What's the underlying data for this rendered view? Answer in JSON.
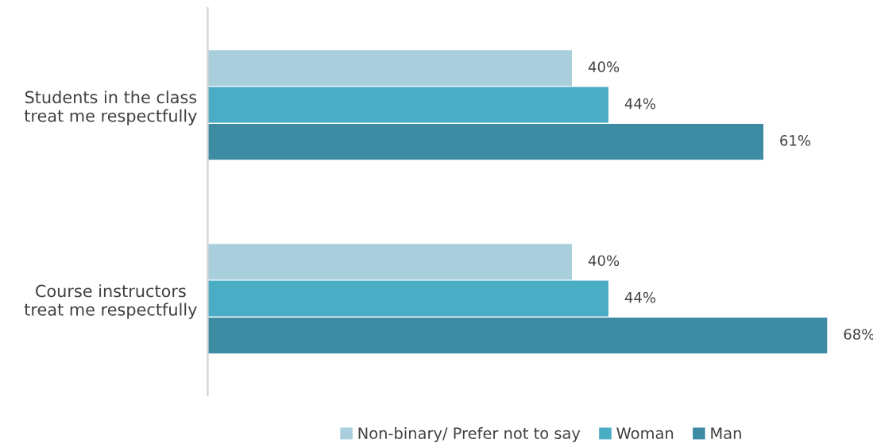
{
  "chart_data": {
    "type": "bar",
    "orientation": "horizontal",
    "categories": [
      "Students in the class\ntreat me respectfully",
      "Course instructors\ntreat me respectfully"
    ],
    "series": [
      {
        "name": "Non-binary/ Prefer not to say",
        "color": "#a9cfdc",
        "values": [
          40,
          40
        ],
        "value_labels": [
          "40%",
          "40%"
        ]
      },
      {
        "name": "Woman",
        "color": "#4aacc5",
        "values": [
          44,
          44
        ],
        "value_labels": [
          "44%",
          "44%"
        ]
      },
      {
        "name": "Man",
        "color": "#3d8ca3",
        "values": [
          61,
          68
        ],
        "value_labels": [
          "61%",
          "68%"
        ]
      }
    ],
    "legend": "bottom",
    "grid": false,
    "tick_labels": "y"
  }
}
